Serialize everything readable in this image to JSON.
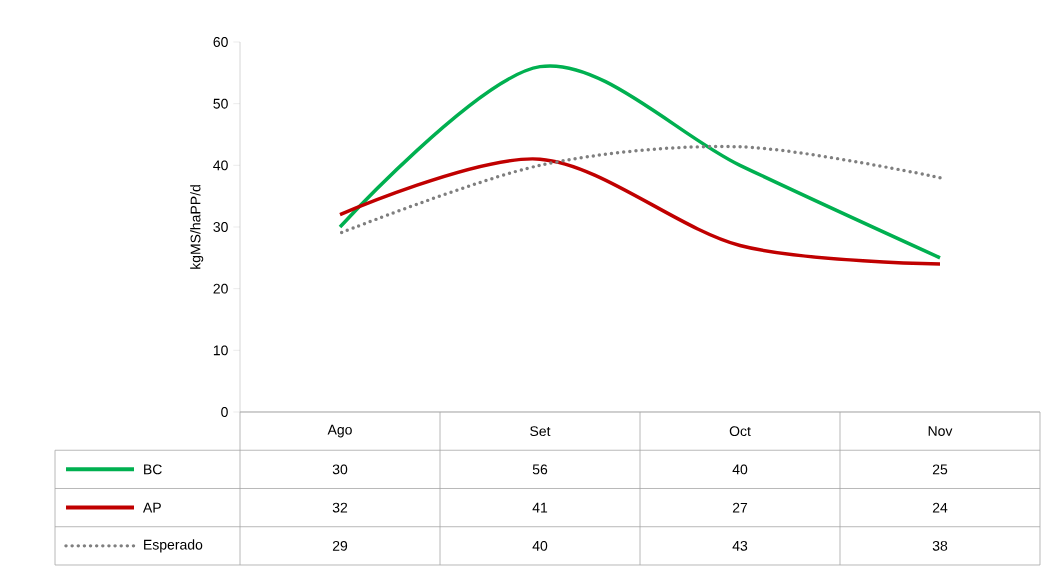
{
  "chart_data": {
    "type": "line",
    "ylabel": "kgMS/haPP/d",
    "categories": [
      "Ago",
      "Set",
      "Oct",
      "Nov"
    ],
    "series": [
      {
        "name": "BC",
        "color": "#00b050",
        "values": [
          30,
          56,
          40,
          25
        ],
        "line_style": "solid"
      },
      {
        "name": "AP",
        "color": "#c00000",
        "values": [
          32,
          41,
          27,
          24
        ],
        "line_style": "solid"
      },
      {
        "name": "Esperado",
        "color": "#7f7f7f",
        "values": [
          29,
          40,
          43,
          38
        ],
        "line_style": "dotted"
      }
    ],
    "ylim": [
      0,
      60
    ],
    "yticks": [
      0,
      10,
      20,
      30,
      40,
      50,
      60
    ],
    "grid": false,
    "legend": "bottom left",
    "data_labels": true,
    "marker": "none"
  }
}
